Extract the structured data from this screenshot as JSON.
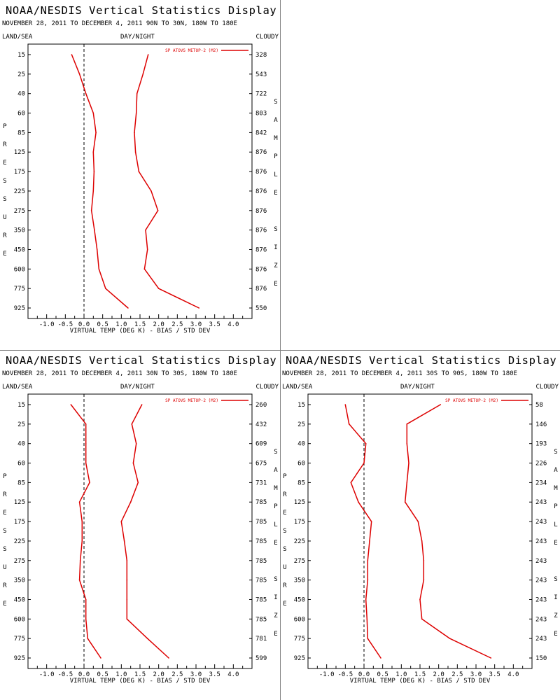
{
  "labels": {
    "title": "NOAA/NESDIS Vertical Statistics Display",
    "land_sea": "LAND/SEA",
    "day_night": "DAY/NIGHT",
    "cloudy": "CLOUDY",
    "pressure_vertical": "PRESSURE",
    "sample_size_vertical": "SAMPLE SIZE"
  },
  "colors": {
    "series": "#dd0000",
    "axis": "#000000",
    "zero_line": "#000000"
  },
  "chart_data": [
    {
      "type": "line",
      "title": "NOAA/NESDIS Vertical Statistics Display",
      "subtitle": "NOVEMBER 28, 2011 TO DECEMBER 4, 2011 90N TO 30N, 180W TO 180E",
      "xlabel": "VIRTUAL TEMP (DEG K) - BIAS / STD DEV",
      "xlim": [
        -1.5,
        4.5
      ],
      "x_ticks": [
        "-1.0",
        "-0.5",
        "0.0",
        "0.5",
        "1.0",
        "1.5",
        "2.0",
        "2.5",
        "3.0",
        "3.5",
        "4.0"
      ],
      "pressure_levels": [
        "15",
        "25",
        "40",
        "60",
        "85",
        "125",
        "175",
        "225",
        "275",
        "350",
        "450",
        "600",
        "775",
        "925"
      ],
      "sample_size": [
        "328",
        "543",
        "722",
        "803",
        "842",
        "876",
        "876",
        "876",
        "876",
        "876",
        "876",
        "876",
        "876",
        "550"
      ],
      "legend": "SP ATOVS METOP-2 (M2)",
      "series": [
        {
          "name": "bias",
          "values": [
            -0.33,
            -0.12,
            0.05,
            0.25,
            0.32,
            0.25,
            0.27,
            0.25,
            0.2,
            0.28,
            0.35,
            0.4,
            0.58,
            1.18
          ]
        },
        {
          "name": "std_dev",
          "values": [
            1.72,
            1.58,
            1.42,
            1.4,
            1.35,
            1.38,
            1.47,
            1.8,
            1.98,
            1.65,
            1.7,
            1.62,
            2.0,
            3.08
          ]
        }
      ]
    },
    {
      "type": "line",
      "title": "NOAA/NESDIS Vertical Statistics Display",
      "subtitle": "NOVEMBER 28, 2011 TO DECEMBER 4, 2011 30N TO 30S, 180W TO 180E",
      "xlabel": "VIRTUAL TEMP (DEG K) - BIAS / STD DEV",
      "xlim": [
        -1.5,
        4.5
      ],
      "x_ticks": [
        "-1.0",
        "-0.5",
        "0.0",
        "0.5",
        "1.0",
        "1.5",
        "2.0",
        "2.5",
        "3.0",
        "3.5",
        "4.0"
      ],
      "pressure_levels": [
        "15",
        "25",
        "40",
        "60",
        "85",
        "125",
        "175",
        "225",
        "275",
        "350",
        "450",
        "600",
        "775",
        "925"
      ],
      "sample_size": [
        "260",
        "432",
        "609",
        "675",
        "731",
        "785",
        "785",
        "785",
        "785",
        "785",
        "785",
        "785",
        "781",
        "599"
      ],
      "legend": "SP ATOVS METOP-2 (M2)",
      "series": [
        {
          "name": "bias",
          "values": [
            -0.35,
            0.05,
            0.05,
            0.05,
            0.15,
            -0.12,
            -0.05,
            -0.05,
            -0.1,
            -0.12,
            0.05,
            0.05,
            0.1,
            0.45
          ]
        },
        {
          "name": "std_dev",
          "values": [
            1.55,
            1.28,
            1.4,
            1.32,
            1.45,
            1.25,
            1.0,
            1.08,
            1.15,
            1.15,
            1.15,
            1.15,
            1.7,
            2.27
          ]
        }
      ]
    },
    {
      "type": "line",
      "title": "NOAA/NESDIS Vertical Statistics Display",
      "subtitle": "NOVEMBER 28, 2011 TO DECEMBER 4, 2011 30S TO 90S, 180W TO 180E",
      "xlabel": "VIRTUAL TEMP (DEG K) - BIAS / STD DEV",
      "xlim": [
        -1.5,
        4.5
      ],
      "x_ticks": [
        "-1.0",
        "-0.5",
        "0.0",
        "0.5",
        "1.0",
        "1.5",
        "2.0",
        "2.5",
        "3.0",
        "3.5",
        "4.0"
      ],
      "pressure_levels": [
        "15",
        "25",
        "40",
        "60",
        "85",
        "125",
        "175",
        "225",
        "275",
        "350",
        "450",
        "600",
        "775",
        "925"
      ],
      "sample_size": [
        "58",
        "146",
        "193",
        "226",
        "234",
        "243",
        "243",
        "243",
        "243",
        "243",
        "243",
        "243",
        "243",
        "150"
      ],
      "legend": "SP ATOVS METOP-2 (M2)",
      "series": [
        {
          "name": "bias",
          "values": [
            -0.5,
            -0.4,
            0.05,
            0.0,
            -0.35,
            -0.15,
            0.2,
            0.15,
            0.1,
            0.1,
            0.05,
            0.08,
            0.1,
            0.45
          ]
        },
        {
          "name": "std_dev",
          "values": [
            2.05,
            1.15,
            1.15,
            1.2,
            1.15,
            1.1,
            1.45,
            1.55,
            1.6,
            1.6,
            1.5,
            1.55,
            2.3,
            3.4
          ]
        }
      ]
    }
  ]
}
